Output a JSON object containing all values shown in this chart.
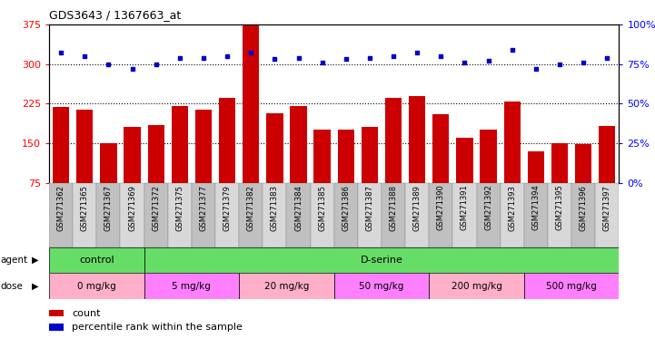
{
  "title": "GDS3643 / 1367663_at",
  "samples": [
    "GSM271362",
    "GSM271365",
    "GSM271367",
    "GSM271369",
    "GSM271372",
    "GSM271375",
    "GSM271377",
    "GSM271379",
    "GSM271382",
    "GSM271383",
    "GSM271384",
    "GSM271385",
    "GSM271386",
    "GSM271387",
    "GSM271388",
    "GSM271389",
    "GSM271390",
    "GSM271391",
    "GSM271392",
    "GSM271393",
    "GSM271394",
    "GSM271395",
    "GSM271396",
    "GSM271397"
  ],
  "counts": [
    218,
    213,
    150,
    180,
    185,
    220,
    213,
    235,
    375,
    207,
    220,
    175,
    175,
    180,
    235,
    240,
    205,
    160,
    175,
    228,
    135,
    150,
    148,
    183
  ],
  "percentiles": [
    82,
    80,
    75,
    72,
    75,
    79,
    79,
    80,
    82,
    78,
    79,
    76,
    78,
    79,
    80,
    82,
    80,
    76,
    77,
    84,
    72,
    75,
    76,
    79
  ],
  "dose_groups": [
    {
      "label": "0 mg/kg",
      "start": 0,
      "end": 4,
      "color": "#FFB0C8"
    },
    {
      "label": "5 mg/kg",
      "start": 4,
      "end": 8,
      "color": "#FF80FF"
    },
    {
      "label": "20 mg/kg",
      "start": 8,
      "end": 12,
      "color": "#FFB0C8"
    },
    {
      "label": "50 mg/kg",
      "start": 12,
      "end": 16,
      "color": "#FF80FF"
    },
    {
      "label": "200 mg/kg",
      "start": 16,
      "end": 20,
      "color": "#FFB0C8"
    },
    {
      "label": "500 mg/kg",
      "start": 20,
      "end": 24,
      "color": "#FF80FF"
    }
  ],
  "ylim_left": [
    75,
    375
  ],
  "ylim_right": [
    0,
    100
  ],
  "yticks_left": [
    75,
    150,
    225,
    300,
    375
  ],
  "yticks_right": [
    0,
    25,
    50,
    75,
    100
  ],
  "bar_color": "#CC0000",
  "dot_color": "#0000CC",
  "agent_green": "#66DD66",
  "gridline_color": "#000000",
  "bar_width": 0.7,
  "xtick_colors": [
    "#C0C0C0",
    "#D8D8D8"
  ]
}
